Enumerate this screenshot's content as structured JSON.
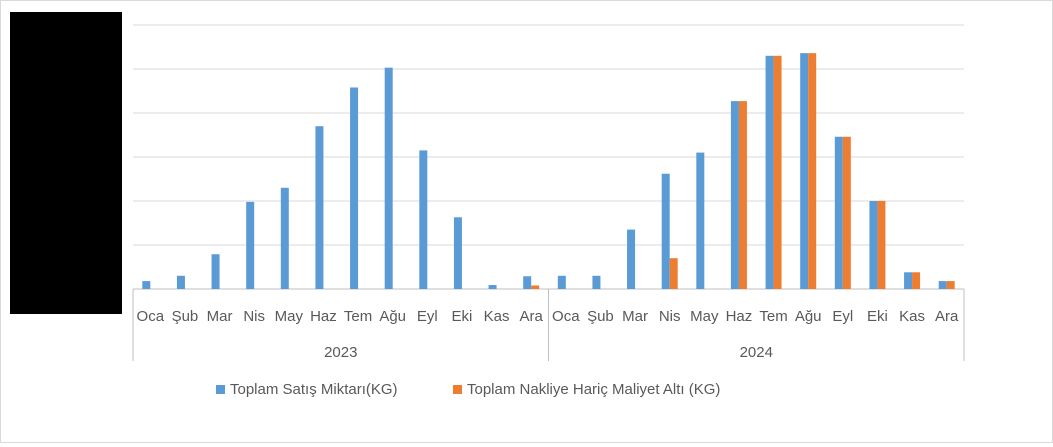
{
  "chart_data": {
    "type": "bar",
    "title": "",
    "xlabel": "",
    "ylabel": "",
    "ylim": [
      0,
      6000
    ],
    "gridlines": [
      0,
      1000,
      2000,
      3000,
      4000,
      5000,
      6000
    ],
    "grid": true,
    "legend_position": "bottom",
    "groups": [
      {
        "label": "2023",
        "categories": [
          "Oca",
          "Şub",
          "Mar",
          "Nis",
          "May",
          "Haz",
          "Tem",
          "Ağu",
          "Eyl",
          "Eki",
          "Kas",
          "Ara"
        ]
      },
      {
        "label": "2024",
        "categories": [
          "Oca",
          "Şub",
          "Mar",
          "Nis",
          "May",
          "Haz",
          "Tem",
          "Ağu",
          "Eyl",
          "Eki",
          "Kas",
          "Ara"
        ]
      }
    ],
    "series": [
      {
        "name": "Toplam Satış Miktarı(KG)",
        "color": "#5b9bd5",
        "values": [
          180,
          300,
          790,
          1980,
          2300,
          3700,
          4580,
          5030,
          3150,
          1630,
          90,
          290,
          300,
          300,
          1350,
          2620,
          3100,
          4270,
          5300,
          5360,
          3460,
          2000,
          380,
          180
        ]
      },
      {
        "name": "Toplam Nakliye Hariç Maliyet Altı (KG)",
        "color": "#ed7d31",
        "values": [
          0,
          0,
          0,
          0,
          0,
          0,
          0,
          0,
          0,
          0,
          0,
          80,
          0,
          0,
          0,
          700,
          0,
          4270,
          5300,
          5360,
          3460,
          2000,
          380,
          180
        ]
      }
    ]
  }
}
